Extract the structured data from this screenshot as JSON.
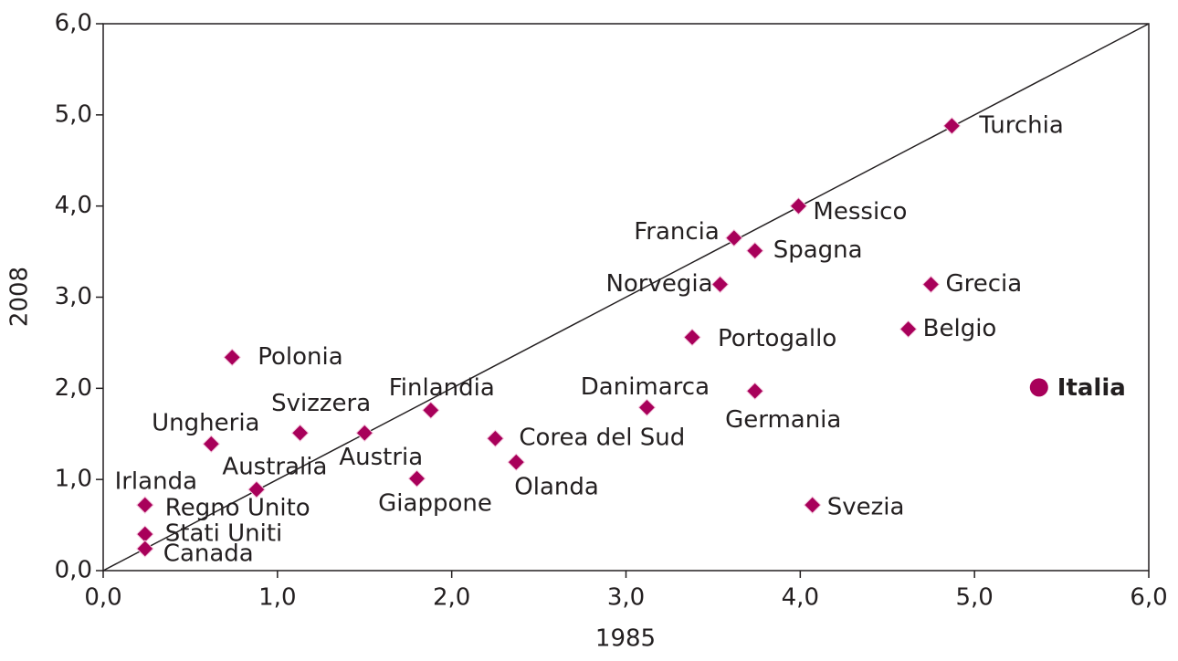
{
  "chart_data": {
    "type": "scatter",
    "x_label": "1985",
    "y_label": "2008",
    "xlim": [
      0,
      6
    ],
    "ylim": [
      0,
      6
    ],
    "xticks": [
      {
        "value": 0,
        "label": "0,0"
      },
      {
        "value": 1,
        "label": "1,0"
      },
      {
        "value": 2,
        "label": "2,0"
      },
      {
        "value": 3,
        "label": "3,0"
      },
      {
        "value": 4,
        "label": "4,0"
      },
      {
        "value": 5,
        "label": "5,0"
      },
      {
        "value": 6,
        "label": "6,0"
      }
    ],
    "yticks": [
      {
        "value": 0,
        "label": "0,0"
      },
      {
        "value": 1,
        "label": "1,0"
      },
      {
        "value": 2,
        "label": "2,0"
      },
      {
        "value": 3,
        "label": "3,0"
      },
      {
        "value": 4,
        "label": "4,0"
      },
      {
        "value": 5,
        "label": "5,0"
      },
      {
        "value": 6,
        "label": "6,0"
      }
    ],
    "diagonal": true,
    "color": "#a8005a",
    "points": [
      {
        "label": "Turchia",
        "x": 4.87,
        "y": 4.88
      },
      {
        "label": "Messico",
        "x": 3.99,
        "y": 4.0
      },
      {
        "label": "Francia",
        "x": 3.62,
        "y": 3.65
      },
      {
        "label": "Spagna",
        "x": 3.74,
        "y": 3.51
      },
      {
        "label": "Norvegia",
        "x": 3.54,
        "y": 3.14
      },
      {
        "label": "Grecia",
        "x": 4.75,
        "y": 3.14
      },
      {
        "label": "Portogallo",
        "x": 3.38,
        "y": 2.56
      },
      {
        "label": "Belgio",
        "x": 4.62,
        "y": 2.65
      },
      {
        "label": "Italia",
        "x": 5.37,
        "y": 2.01,
        "marker": "circle"
      },
      {
        "label": "Polonia",
        "x": 0.74,
        "y": 2.34
      },
      {
        "label": "Finlandia",
        "x": 1.88,
        "y": 1.76
      },
      {
        "label": "Danimarca",
        "x": 3.12,
        "y": 1.79
      },
      {
        "label": "Germania",
        "x": 3.74,
        "y": 1.97
      },
      {
        "label": "Svizzera",
        "x": 1.13,
        "y": 1.51
      },
      {
        "label": "Austria",
        "x": 1.5,
        "y": 1.51
      },
      {
        "label": "Ungheria",
        "x": 0.62,
        "y": 1.39
      },
      {
        "label": "Corea del Sud",
        "x": 2.25,
        "y": 1.45
      },
      {
        "label": "Olanda",
        "x": 2.37,
        "y": 1.19
      },
      {
        "label": "Giappone",
        "x": 1.8,
        "y": 1.01
      },
      {
        "label": "Australia",
        "x": 0.88,
        "y": 0.89
      },
      {
        "label": "Irlanda",
        "x": 0.24,
        "y": 0.72
      },
      {
        "label": "Svezia",
        "x": 4.07,
        "y": 0.72
      },
      {
        "label": "Regno Unito",
        "x": 0.24,
        "y": 0.72
      },
      {
        "label": "Stati Uniti",
        "x": 0.24,
        "y": 0.4
      },
      {
        "label": "Canada",
        "x": 0.24,
        "y": 0.24
      }
    ]
  }
}
